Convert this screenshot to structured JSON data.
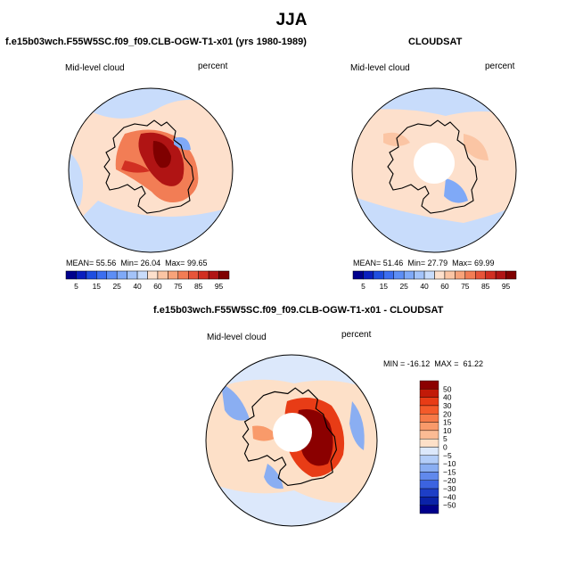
{
  "figure": {
    "title": "JJA",
    "panels": [
      {
        "title": "f.e15b03wch.F55W5SC.f09_f09.CLB-OGW-T1-x01 (yrs 1980-1989)",
        "variable": "Mid-level cloud",
        "units": "percent",
        "stats": {
          "mean_label": "MEAN=",
          "mean": "55.56",
          "min_label": "Min=",
          "min": "26.04",
          "max_label": "Max=",
          "max": "99.65"
        }
      },
      {
        "title": "CLOUDSAT",
        "variable": "Mid-level cloud",
        "units": "percent",
        "stats": {
          "mean_label": "MEAN=",
          "mean": "51.46",
          "min_label": "Min=",
          "min": "27.79",
          "max_label": "Max=",
          "max": "69.99"
        }
      },
      {
        "title": "f.e15b03wch.F55W5SC.f09_f09.CLB-OGW-T1-x01 - CLOUDSAT",
        "variable": "Mid-level cloud",
        "units": "percent",
        "stats_text": "MIN = -16.12  MAX =  61.22"
      }
    ]
  },
  "chart_data": [
    {
      "type": "heatmap",
      "projection": "polar-stereographic-south",
      "title": "f.e15b03wch.F55W5SC.f09_f09.CLB-OGW-T1-x01 (yrs 1980-1989)",
      "variable": "Mid-level cloud",
      "units": "percent",
      "mean": 55.56,
      "min": 26.04,
      "max": 99.65,
      "colorbar": {
        "levels": [
          5,
          10,
          15,
          20,
          25,
          30,
          40,
          50,
          60,
          65,
          70,
          75,
          80,
          85,
          90,
          95
        ],
        "tick_labels": [
          "5",
          "15",
          "25",
          "40",
          "60",
          "75",
          "85",
          "95"
        ],
        "colors": [
          "#00008c",
          "#0a1fbe",
          "#1f4ee0",
          "#3c6ef0",
          "#5d8ef5",
          "#7fa9f7",
          "#a3c3f9",
          "#c8dcfb",
          "#fde0cc",
          "#fbc5a4",
          "#f8a37a",
          "#f27d55",
          "#e7553a",
          "#d12f22",
          "#b01414",
          "#7f0000"
        ]
      }
    },
    {
      "type": "heatmap",
      "projection": "polar-stereographic-south",
      "title": "CLOUDSAT",
      "variable": "Mid-level cloud",
      "units": "percent",
      "mean": 51.46,
      "min": 27.79,
      "max": 69.99,
      "colorbar": {
        "levels": [
          5,
          10,
          15,
          20,
          25,
          30,
          40,
          50,
          60,
          65,
          70,
          75,
          80,
          85,
          90,
          95
        ],
        "tick_labels": [
          "5",
          "15",
          "25",
          "40",
          "60",
          "75",
          "85",
          "95"
        ],
        "colors": [
          "#00008c",
          "#0a1fbe",
          "#1f4ee0",
          "#3c6ef0",
          "#5d8ef5",
          "#7fa9f7",
          "#a3c3f9",
          "#c8dcfb",
          "#fde0cc",
          "#fbc5a4",
          "#f8a37a",
          "#f27d55",
          "#e7553a",
          "#d12f22",
          "#b01414",
          "#7f0000"
        ]
      }
    },
    {
      "type": "heatmap",
      "projection": "polar-stereographic-south",
      "title": "f.e15b03wch.F55W5SC.f09_f09.CLB-OGW-T1-x01 - CLOUDSAT",
      "variable": "Mid-level cloud",
      "units": "percent",
      "min": -16.12,
      "max": 61.22,
      "colorbar": {
        "levels": [
          50,
          40,
          30,
          20,
          15,
          10,
          5,
          0,
          -5,
          -10,
          -15,
          -20,
          -30,
          -40,
          -50
        ],
        "tick_labels": [
          "50",
          "40",
          "30",
          "20",
          "15",
          "10",
          "5",
          "0",
          "−5",
          "−10",
          "−15",
          "−20",
          "−30",
          "−40",
          "−50"
        ],
        "colors": [
          "#8b0000",
          "#c21a08",
          "#e83c16",
          "#f45a2a",
          "#f77a48",
          "#f99a6a",
          "#fbbb94",
          "#fde0c8",
          "#dce8fb",
          "#b3cdf8",
          "#8aaef2",
          "#6189ec",
          "#3c63e0",
          "#1d3ec6",
          "#0a22a8",
          "#00008b"
        ]
      }
    }
  ]
}
